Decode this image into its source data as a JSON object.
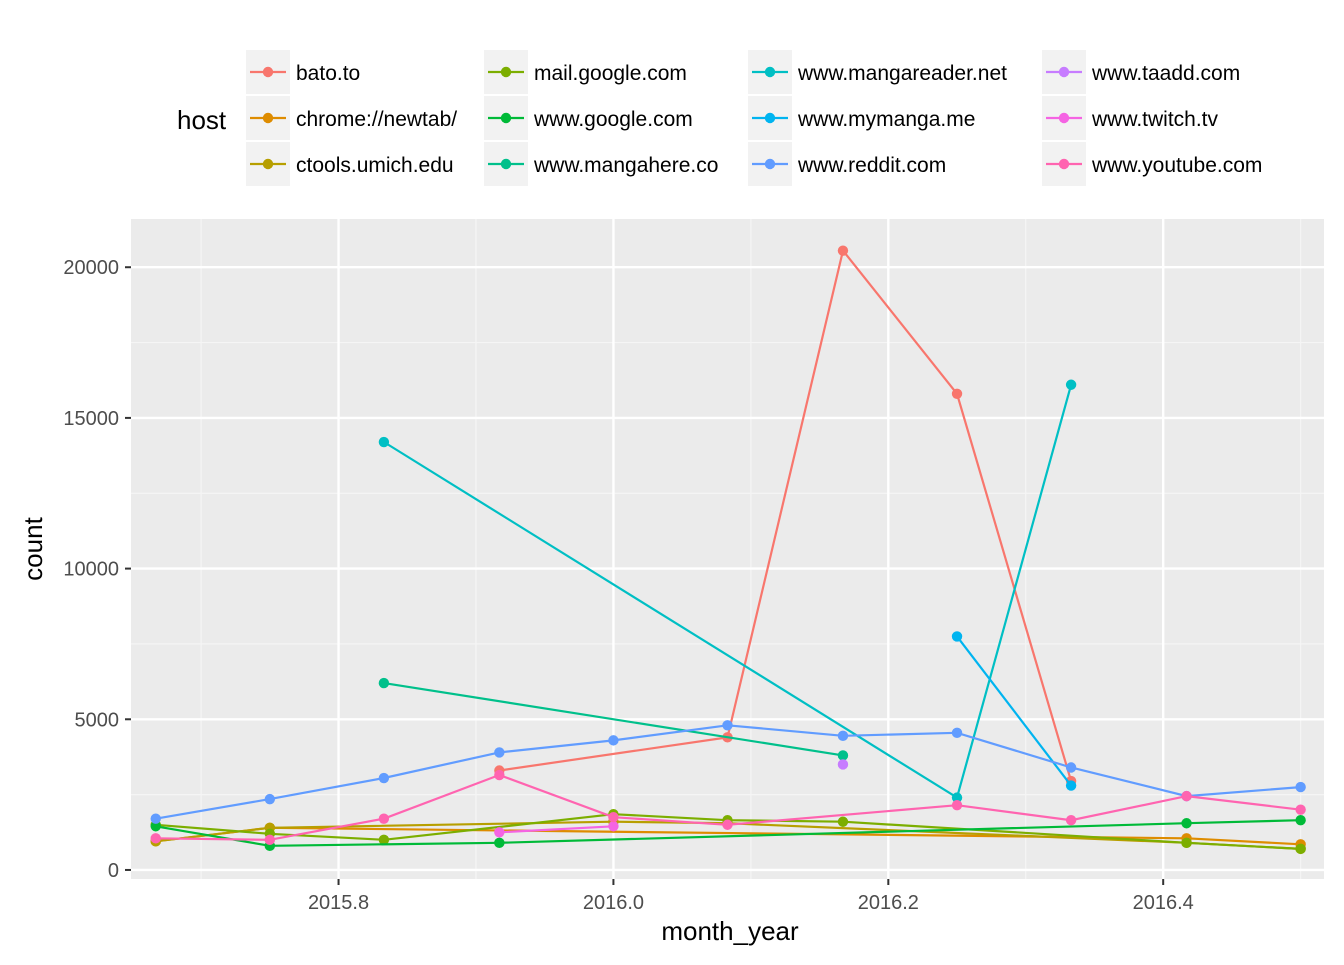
{
  "chart_data": {
    "type": "line",
    "xlabel": "month_year",
    "ylabel": "count",
    "legend": {
      "title": "host",
      "placement": "top"
    },
    "xlim": [
      2015.649,
      2016.517
    ],
    "ylim": [
      -300,
      21600
    ],
    "xticks": [
      2015.8,
      2016.0,
      2016.2,
      2016.4
    ],
    "xtick_labels": [
      "2015.8",
      "2016.0",
      "2016.2",
      "2016.4"
    ],
    "yticks": [
      0,
      5000,
      10000,
      15000,
      20000
    ],
    "ytick_labels": [
      "0",
      "5000",
      "10000",
      "15000",
      "20000"
    ],
    "grid": true,
    "series": [
      {
        "name": "bato.to",
        "color": "#F8766D",
        "points": [
          [
            2015.917,
            3300
          ],
          [
            2016.083,
            4400
          ],
          [
            2016.167,
            20550
          ],
          [
            2016.25,
            15800
          ],
          [
            2016.333,
            2950
          ]
        ]
      },
      {
        "name": "chrome://newtab/",
        "color": "#DE8C00",
        "points": [
          [
            2015.667,
            950
          ],
          [
            2015.75,
            1400
          ],
          [
            2016.417,
            1050
          ],
          [
            2016.5,
            850
          ]
        ]
      },
      {
        "name": "ctools.umich.edu",
        "color": "#B79F00",
        "points": [
          [
            2015.667,
            950
          ],
          [
            2015.75,
            1400
          ],
          [
            2016.0,
            1600
          ],
          [
            2016.083,
            1550
          ],
          [
            2016.417,
            900
          ],
          [
            2016.5,
            700
          ]
        ]
      },
      {
        "name": "mail.google.com",
        "color": "#7CAE00",
        "points": [
          [
            2015.667,
            1500
          ],
          [
            2015.75,
            1200
          ],
          [
            2015.833,
            1000
          ],
          [
            2016.0,
            1850
          ],
          [
            2016.083,
            1650
          ],
          [
            2016.167,
            1600
          ],
          [
            2016.417,
            900
          ],
          [
            2016.5,
            700
          ]
        ]
      },
      {
        "name": "www.google.com",
        "color": "#00BA38",
        "points": [
          [
            2015.667,
            1450
          ],
          [
            2015.75,
            800
          ],
          [
            2015.917,
            900
          ],
          [
            2016.417,
            1550
          ],
          [
            2016.5,
            1650
          ]
        ]
      },
      {
        "name": "www.mangahere.co",
        "color": "#00C08B",
        "points": [
          [
            2015.833,
            6200
          ],
          [
            2016.167,
            3800
          ]
        ]
      },
      {
        "name": "www.mangareader.net",
        "color": "#00BFC4",
        "points": [
          [
            2015.833,
            14200
          ],
          [
            2016.25,
            2400
          ],
          [
            2016.333,
            16100
          ]
        ]
      },
      {
        "name": "www.mymanga.me",
        "color": "#00B4F0",
        "points": [
          [
            2016.25,
            7750
          ],
          [
            2016.333,
            2800
          ]
        ]
      },
      {
        "name": "www.reddit.com",
        "color": "#619CFF",
        "points": [
          [
            2015.667,
            1700
          ],
          [
            2015.75,
            2350
          ],
          [
            2015.833,
            3050
          ],
          [
            2015.917,
            3900
          ],
          [
            2016.0,
            4300
          ],
          [
            2016.083,
            4800
          ],
          [
            2016.167,
            4450
          ],
          [
            2016.25,
            4550
          ],
          [
            2016.333,
            3400
          ],
          [
            2016.417,
            2450
          ],
          [
            2016.5,
            2750
          ]
        ]
      },
      {
        "name": "www.taadd.com",
        "color": "#C77CFF",
        "points": [
          [
            2016.167,
            3500
          ]
        ]
      },
      {
        "name": "www.twitch.tv",
        "color": "#F564E3",
        "points": [
          [
            2015.917,
            1250
          ],
          [
            2016.0,
            1450
          ]
        ]
      },
      {
        "name": "www.youtube.com",
        "color": "#FF64B0",
        "points": [
          [
            2015.667,
            1050
          ],
          [
            2015.75,
            1000
          ],
          [
            2015.833,
            1700
          ],
          [
            2015.917,
            3150
          ],
          [
            2016.0,
            1750
          ],
          [
            2016.083,
            1500
          ],
          [
            2016.25,
            2150
          ],
          [
            2016.333,
            1650
          ],
          [
            2016.417,
            2450
          ],
          [
            2016.5,
            2000
          ]
        ]
      }
    ]
  }
}
